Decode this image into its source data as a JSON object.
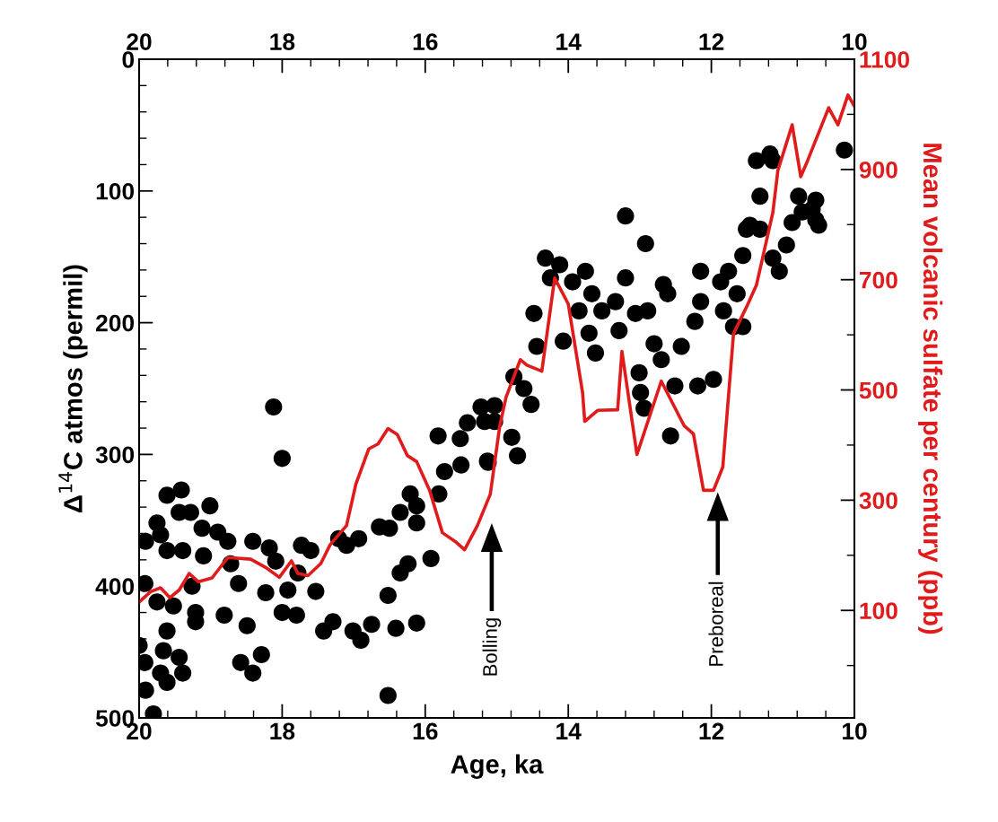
{
  "chart_data": {
    "type": "scatter",
    "xlabel": "Age, ka",
    "ylabel": "Δ$^{14}$C atmos (permil)",
    "y2label": "Mean volcanic sulfate per century (ppb)",
    "xlim": [
      20,
      10
    ],
    "ylim": [
      500,
      0
    ],
    "y2lim": [
      -95,
      1100
    ],
    "x2lim": [
      20,
      10
    ],
    "xticks": [
      20,
      {
        "value": 19.6,
        "label": null
      },
      {
        "value": 19.2,
        "label": null
      },
      {
        "value": 18.8,
        "label": null
      },
      {
        "value": 18.4,
        "label": null
      },
      18,
      {
        "value": 17.6,
        "label": null
      },
      {
        "value": 17.2,
        "label": null
      },
      {
        "value": 16.8,
        "label": null
      },
      {
        "value": 16.4,
        "label": null
      },
      16,
      {
        "value": 15.6,
        "label": null
      },
      {
        "value": 15.2,
        "label": null
      },
      {
        "value": 14.8,
        "label": null
      },
      {
        "value": 14.4,
        "label": null
      },
      14,
      {
        "value": 13.6,
        "label": null
      },
      {
        "value": 13.2,
        "label": null
      },
      {
        "value": 12.8,
        "label": null
      },
      {
        "value": 12.4,
        "label": null
      },
      12,
      {
        "value": 11.6,
        "label": null
      },
      {
        "value": 11.2,
        "label": null
      },
      {
        "value": 10.8,
        "label": null
      },
      {
        "value": 10.4,
        "label": null
      },
      10
    ],
    "x2ticks": [
      20,
      {
        "value": 19.6,
        "label": null
      },
      {
        "value": 19.2,
        "label": null
      },
      {
        "value": 18.8,
        "label": null
      },
      {
        "value": 18.4,
        "label": null
      },
      18,
      {
        "value": 17.6,
        "label": null
      },
      {
        "value": 17.2,
        "label": null
      },
      {
        "value": 16.8,
        "label": null
      },
      {
        "value": 16.4,
        "label": null
      },
      16,
      {
        "value": 15.6,
        "label": null
      },
      {
        "value": 15.2,
        "label": null
      },
      {
        "value": 14.8,
        "label": null
      },
      {
        "value": 14.4,
        "label": null
      },
      14,
      {
        "value": 13.6,
        "label": null
      },
      {
        "value": 13.2,
        "label": null
      },
      {
        "value": 12.8,
        "label": null
      },
      {
        "value": 12.4,
        "label": null
      },
      12,
      {
        "value": 11.6,
        "label": null
      },
      {
        "value": 11.2,
        "label": null
      },
      {
        "value": 10.8,
        "label": null
      },
      {
        "value": 10.4,
        "label": null
      },
      10
    ],
    "yticks": [
      0,
      {
        "value": 20,
        "label": null
      },
      {
        "value": 40,
        "label": null
      },
      {
        "value": 60,
        "label": null
      },
      {
        "value": 80,
        "label": null
      },
      100,
      {
        "value": 120,
        "label": null
      },
      {
        "value": 140,
        "label": null
      },
      {
        "value": 160,
        "label": null
      },
      {
        "value": 180,
        "label": null
      },
      200,
      {
        "value": 220,
        "label": null
      },
      {
        "value": 240,
        "label": null
      },
      {
        "value": 260,
        "label": null
      },
      {
        "value": 280,
        "label": null
      },
      300,
      {
        "value": 320,
        "label": null
      },
      {
        "value": 340,
        "label": null
      },
      {
        "value": 360,
        "label": null
      },
      {
        "value": 380,
        "label": null
      },
      400,
      {
        "value": 420,
        "label": null
      },
      {
        "value": 440,
        "label": null
      },
      {
        "value": 460,
        "label": null
      },
      {
        "value": 480,
        "label": null
      },
      500
    ],
    "y2ticks": [
      {
        "value": 0,
        "label": null
      },
      100,
      {
        "value": 200,
        "label": null
      },
      300,
      {
        "value": 400,
        "label": null
      },
      500,
      {
        "value": 600,
        "label": null
      },
      700,
      {
        "value": 800,
        "label": null
      },
      900,
      {
        "value": 1000,
        "label": null
      },
      1100
    ],
    "grid": false,
    "legend": false,
    "marker": "circle",
    "annotations": [
      "Bolling",
      "Preboreal"
    ],
    "series": [
      {
        "color": "#000000",
        "x": [
          19.91,
          19.92,
          20.0,
          19.92,
          19.91,
          19.8,
          19.61,
          19.41,
          19.75,
          19.7,
          19.61,
          19.39,
          19.44,
          19.28,
          19.75,
          19.52,
          19.61,
          19.66,
          19.7,
          19.61,
          19.44,
          19.39,
          19.26,
          19.21,
          19.21,
          19.01,
          19.12,
          19.1,
          18.9,
          18.76,
          18.72,
          18.61,
          18.81,
          18.49,
          18.58,
          18.41,
          18.29,
          18.41,
          18.18,
          18.09,
          18.23,
          18.0,
          17.8,
          17.92,
          17.73,
          17.6,
          17.53,
          17.78,
          18.12,
          18.0,
          17.42,
          17.29,
          17.21,
          17.1,
          16.93,
          17.01,
          16.9,
          16.75,
          16.64,
          16.5,
          16.52,
          16.41,
          16.52,
          16.35,
          16.24,
          16.12,
          16.35,
          16.21,
          16.12,
          16.12,
          15.92,
          15.81,
          15.73,
          15.82,
          15.51,
          15.5,
          15.41,
          15.22,
          15.13,
          15.03,
          14.76,
          14.62,
          14.44,
          14.48,
          14.32,
          14.25,
          14.12,
          14.07,
          13.94,
          13.85,
          13.76,
          13.71,
          13.62,
          13.67,
          13.53,
          13.34,
          13.2,
          13.2,
          13.29,
          13.06,
          12.92,
          12.89,
          12.67,
          12.61,
          12.8,
          13.01,
          12.99,
          12.7,
          12.51,
          12.42,
          12.19,
          12.15,
          12.15,
          12.23,
          11.97,
          11.87,
          11.76,
          11.83,
          11.69,
          11.56,
          11.64,
          11.56,
          11.51,
          11.32,
          11.46,
          11.32,
          11.37,
          11.18,
          11.14,
          11.14,
          11.05,
          10.95,
          10.87,
          10.78,
          10.73,
          10.59,
          10.5,
          10.54,
          10.14,
          10.54,
          15.17,
          15.03,
          14.79,
          14.71,
          15.12,
          14.52,
          12.57,
          12.94
        ],
        "values": [
          366,
          398,
          445,
          458,
          479,
          497,
          331,
          327,
          352,
          361,
          373,
          373,
          344,
          344,
          412,
          415,
          434,
          449,
          466,
          473,
          454,
          466,
          400,
          420,
          427,
          339,
          356,
          377,
          359,
          366,
          383,
          398,
          422,
          430,
          458,
          466,
          452,
          366,
          371,
          381,
          405,
          420,
          422,
          403,
          369,
          373,
          404,
          390,
          264,
          303,
          434,
          427,
          364,
          369,
          364,
          434,
          441,
          429,
          355,
          356,
          407,
          432,
          483,
          390,
          383,
          428,
          344,
          330,
          339,
          352,
          379,
          330,
          313,
          286,
          288,
          308,
          276,
          264,
          305,
          263,
          241,
          250,
          218,
          193,
          151,
          166,
          156,
          214,
          169,
          191,
          161,
          208,
          223,
          178,
          191,
          184,
          119,
          166,
          206,
          193,
          140,
          191,
          171,
          178,
          216,
          238,
          253,
          228,
          248,
          218,
          248,
          161,
          184,
          199,
          243,
          169,
          161,
          191,
          203,
          203,
          178,
          149,
          129,
          129,
          126,
          104,
          77,
          72,
          77,
          151,
          161,
          141,
          124,
          104,
          116,
          114,
          126,
          122,
          69,
          107,
          275,
          275,
          287,
          301,
          306,
          262,
          286,
          265
        ]
      },
      {
        "type": "line",
        "axis": "y2",
        "color": "#e01b1b",
        "line_style": "solid",
        "marker": "none",
        "x": [
          20.0,
          19.84,
          19.7,
          19.57,
          19.44,
          19.3,
          19.17,
          18.98,
          18.76,
          18.44,
          18.23,
          18.04,
          17.87,
          17.78,
          17.64,
          17.46,
          17.33,
          17.1,
          16.97,
          16.79,
          16.66,
          16.52,
          16.39,
          16.25,
          16.12,
          15.94,
          15.76,
          15.58,
          15.45,
          15.27,
          15.09,
          14.96,
          14.87,
          14.67,
          14.58,
          14.37,
          14.19,
          14.0,
          13.8,
          13.77,
          13.59,
          13.31,
          13.25,
          13.04,
          12.7,
          12.38,
          12.25,
          12.11,
          11.97,
          11.84,
          11.69,
          11.51,
          11.37,
          11.14,
          11.07,
          10.87,
          10.75,
          10.67,
          10.36,
          10.23,
          10.09,
          10.01
        ],
        "values": [
          115,
          134,
          141,
          123,
          137,
          167,
          152,
          159,
          196,
          193,
          178,
          160,
          190,
          167,
          163,
          185,
          219,
          254,
          329,
          393,
          402,
          430,
          419,
          381,
          370,
          318,
          241,
          225,
          210,
          254,
          311,
          433,
          487,
          555,
          545,
          534,
          703,
          656,
          495,
          443,
          463,
          464,
          570,
          383,
          516,
          435,
          420,
          318,
          318,
          360,
          602,
          650,
          690,
          822,
          898,
          981,
          887,
          911,
          1012,
          981,
          1035,
          1017
        ]
      }
    ]
  }
}
